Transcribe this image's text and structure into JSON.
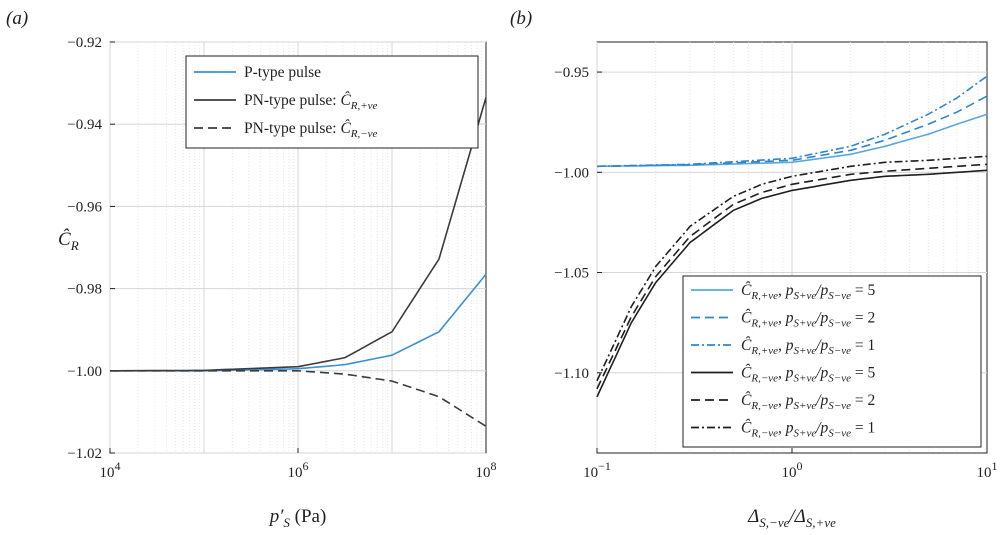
{
  "chart_data": [
    {
      "panel_label": "(a)",
      "type": "line",
      "xlabel": "p′_S (Pa)",
      "ylabel": "Ĉ_R",
      "x_scale": "log",
      "xlim": [
        10000,
        100000000
      ],
      "ylim": [
        -1.02,
        -0.92
      ],
      "x_ticks": [
        "10^4",
        "10^6",
        "10^8"
      ],
      "y_ticks": [
        "−0.92",
        "−0.94",
        "−0.96",
        "−0.98",
        "−1.00",
        "−1.02"
      ],
      "grid": true,
      "legend_position": "top-right",
      "series": [
        {
          "name": "P-type pulse",
          "legend_text": "P-type pulse",
          "color": "#3a8fd6",
          "style": "solid",
          "x": [
            10000,
            100000,
            1000000,
            3162278,
            10000000,
            31622777,
            100000000
          ],
          "y": [
            -1.0,
            -1.0,
            -0.9995,
            -0.9985,
            -0.9962,
            -0.9905,
            -0.9765
          ]
        },
        {
          "name": "PN-type pulse: Ĉ_R,+ve",
          "legend_text": "PN-type pulse: ",
          "legend_math": "Ĉ",
          "legend_sub": "R,+ve",
          "color": "#3b3b3b",
          "style": "solid",
          "x": [
            10000,
            100000,
            1000000,
            3162278,
            10000000,
            31622777,
            100000000
          ],
          "y": [
            -1.0,
            -0.9999,
            -0.999,
            -0.9968,
            -0.9905,
            -0.9728,
            -0.9335
          ]
        },
        {
          "name": "PN-type pulse: Ĉ_R,-ve",
          "legend_text": "PN-type pulse: ",
          "legend_math": "Ĉ",
          "legend_sub": "R,−ve",
          "color": "#3b3b3b",
          "style": "dashed",
          "x": [
            10000,
            100000,
            1000000,
            3162278,
            10000000,
            31622777,
            100000000
          ],
          "y": [
            -1.0,
            -1.0,
            -1.0,
            -1.0008,
            -1.0025,
            -1.0063,
            -1.0135
          ]
        }
      ]
    },
    {
      "panel_label": "(b)",
      "type": "line",
      "xlabel": "Δ_S,−ve/Δ_S,+ve",
      "ylabel": "",
      "x_scale": "log",
      "xlim": [
        0.1,
        10
      ],
      "ylim": [
        -1.14,
        -0.935
      ],
      "x_ticks": [
        "10^−1",
        "10^0",
        "10^1"
      ],
      "y_ticks": [
        "−0.95",
        "−1.00",
        "−1.05",
        "−1.10"
      ],
      "y_tick_values": [
        -0.95,
        -1.0,
        -1.05,
        -1.1
      ],
      "grid": true,
      "legend_position": "bottom-right",
      "series": [
        {
          "name": "Ĉ_R,+ve, p_S+ve/p_S−ve = 5",
          "sub": "R,+ve",
          "ratio": "5",
          "color": "#5aa7e0",
          "style": "solid",
          "x": [
            0.1,
            0.3,
            1,
            2,
            3,
            5,
            7,
            10
          ],
          "y": [
            -0.997,
            -0.9965,
            -0.995,
            -0.991,
            -0.987,
            -0.981,
            -0.976,
            -0.971
          ]
        },
        {
          "name": "Ĉ_R,+ve, p_S+ve/p_S−ve = 2",
          "sub": "R,+ve",
          "ratio": "2",
          "color": "#2f86cc",
          "style": "dashed",
          "x": [
            0.1,
            0.3,
            1,
            2,
            3,
            5,
            7,
            10
          ],
          "y": [
            -0.997,
            -0.9962,
            -0.994,
            -0.989,
            -0.984,
            -0.976,
            -0.97,
            -0.962
          ]
        },
        {
          "name": "Ĉ_R,+ve, p_S+ve/p_S−ve = 1",
          "sub": "R,+ve",
          "ratio": "1",
          "color": "#2f86cc",
          "style": "dashdot",
          "x": [
            0.1,
            0.3,
            1,
            2,
            3,
            5,
            7,
            10
          ],
          "y": [
            -0.997,
            -0.996,
            -0.993,
            -0.987,
            -0.981,
            -0.971,
            -0.963,
            -0.952
          ]
        },
        {
          "name": "Ĉ_R,−ve, p_S+ve/p_S−ve = 5",
          "sub": "R,−ve",
          "ratio": "5",
          "color": "#1f1f1f",
          "style": "solid",
          "x": [
            0.1,
            0.15,
            0.2,
            0.3,
            0.5,
            0.7,
            1,
            2,
            3,
            5,
            10
          ],
          "y": [
            -1.112,
            -1.075,
            -1.055,
            -1.035,
            -1.019,
            -1.013,
            -1.009,
            -1.004,
            -1.002,
            -1.001,
            -0.999
          ]
        },
        {
          "name": "Ĉ_R,−ve, p_S+ve/p_S−ve = 2",
          "sub": "R,−ve",
          "ratio": "2",
          "color": "#1f1f1f",
          "style": "dashed",
          "x": [
            0.1,
            0.15,
            0.2,
            0.3,
            0.5,
            0.7,
            1,
            2,
            3,
            5,
            10
          ],
          "y": [
            -1.108,
            -1.072,
            -1.052,
            -1.032,
            -1.016,
            -1.01,
            -1.006,
            -1.001,
            -0.9995,
            -0.998,
            -0.996
          ]
        },
        {
          "name": "Ĉ_R,−ve, p_S+ve/p_S−ve = 1",
          "sub": "R,−ve",
          "ratio": "1",
          "color": "#1f1f1f",
          "style": "dashdot",
          "x": [
            0.1,
            0.15,
            0.2,
            0.3,
            0.5,
            0.7,
            1,
            2,
            3,
            5,
            10
          ],
          "y": [
            -1.104,
            -1.067,
            -1.047,
            -1.027,
            -1.012,
            -1.006,
            -1.002,
            -0.997,
            -0.995,
            -0.994,
            -0.992
          ]
        }
      ]
    }
  ]
}
